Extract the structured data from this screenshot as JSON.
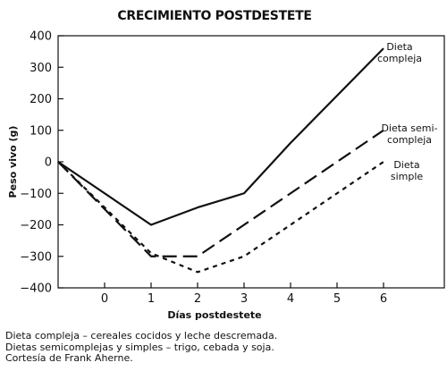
{
  "chart_data": {
    "type": "line",
    "title": "CRECIMIENTO POSTDESTETE",
    "xlabel": "Días postdestete",
    "ylabel": "Peso vivo (g)",
    "xlim": [
      -1,
      7
    ],
    "ylim": [
      -400,
      400
    ],
    "x_ticks": [
      0,
      1,
      2,
      3,
      4,
      5,
      6
    ],
    "y_ticks": [
      -400,
      -300,
      -200,
      -100,
      0,
      100,
      200,
      300,
      400
    ],
    "grid": false,
    "legend": "inline labels at line ends",
    "series": [
      {
        "name": "Dieta compleja",
        "label_lines": [
          "Dieta",
          "compleja"
        ],
        "style": "solid",
        "x": [
          -1,
          1,
          2,
          3,
          4,
          5,
          6
        ],
        "y": [
          0,
          -200,
          -145,
          -100,
          60,
          210,
          360
        ]
      },
      {
        "name": "Dieta semi-compleja",
        "label_lines": [
          "Dieta semi-",
          "compleja"
        ],
        "style": "long-dash",
        "x": [
          -1,
          1,
          2,
          3,
          4,
          5,
          6
        ],
        "y": [
          0,
          -300,
          -300,
          -200,
          -100,
          0,
          100
        ]
      },
      {
        "name": "Dieta simple",
        "label_lines": [
          "Dieta",
          "simple"
        ],
        "style": "short-dash",
        "x": [
          -1,
          1,
          2,
          3,
          4,
          5,
          6
        ],
        "y": [
          0,
          -290,
          -350,
          -300,
          -200,
          -100,
          0
        ]
      }
    ]
  },
  "caption": [
    "Dieta compleja – cereales cocidos y leche descremada.",
    "Dietas semicomplejas y simples – trigo, cebada y soja.",
    "Cortesía de Frank Aherne."
  ]
}
